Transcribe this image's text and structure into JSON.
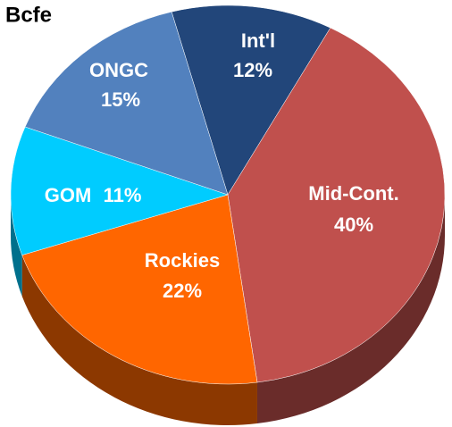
{
  "chart_data": {
    "type": "pie",
    "title": "Bcfe",
    "categories": [
      "Int'l",
      "Mid-Cont.",
      "Rockies",
      "GOM",
      "ONGC"
    ],
    "values": [
      12,
      40,
      22,
      11,
      15
    ],
    "value_labels": [
      "12%",
      "40%",
      "22%",
      "11%",
      "15%"
    ],
    "colors": [
      "#22467a",
      "#c0504d",
      "#ff6600",
      "#00ccff",
      "#5281be"
    ]
  }
}
